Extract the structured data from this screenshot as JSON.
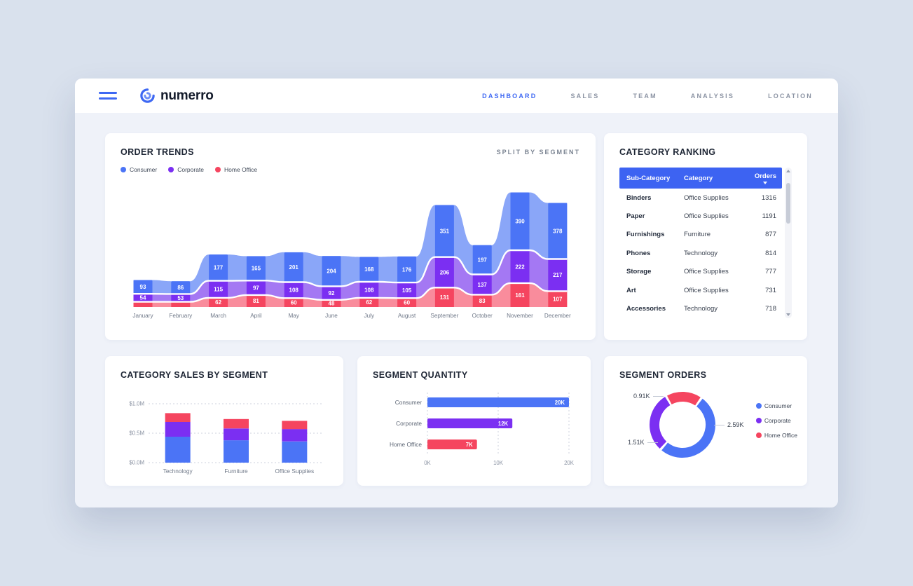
{
  "brand": {
    "name": "numerro"
  },
  "nav": {
    "items": [
      {
        "label": "DASHBOARD",
        "active": true
      },
      {
        "label": "SALES",
        "active": false
      },
      {
        "label": "TEAM",
        "active": false
      },
      {
        "label": "ANALYSIS",
        "active": false
      },
      {
        "label": "LOCATION",
        "active": false
      }
    ]
  },
  "colors": {
    "accent_blue": "#3e68f3",
    "consumer": "#4B74F6",
    "corporate": "#7B2FF2",
    "home_office": "#F5455F",
    "table_header": "#3d63f2"
  },
  "order_trends": {
    "subtitle": "SPLIT BY SEGMENT"
  },
  "category_ranking": {
    "title": "CATEGORY RANKING",
    "columns": [
      "Sub-Category",
      "Category",
      "Orders"
    ],
    "rows": [
      [
        "Binders",
        "Office Supplies",
        "1316"
      ],
      [
        "Paper",
        "Office Supplies",
        "1191"
      ],
      [
        "Furnishings",
        "Furniture",
        "877"
      ],
      [
        "Phones",
        "Technology",
        "814"
      ],
      [
        "Storage",
        "Office Supplies",
        "777"
      ],
      [
        "Art",
        "Office Supplies",
        "731"
      ],
      [
        "Accessories",
        "Technology",
        "718"
      ]
    ]
  },
  "chart_data": [
    {
      "id": "order_trends",
      "type": "area",
      "title": "ORDER TRENDS",
      "stacked": true,
      "categories": [
        "January",
        "February",
        "March",
        "April",
        "May",
        "June",
        "July",
        "August",
        "September",
        "October",
        "November",
        "December"
      ],
      "series": [
        {
          "name": "Consumer",
          "color": "#4B74F6",
          "light": "#8AA6F8",
          "values": [
            93,
            86,
            177,
            165,
            201,
            204,
            168,
            176,
            351,
            197,
            390,
            378
          ]
        },
        {
          "name": "Corporate",
          "color": "#7B2FF2",
          "light": "#A478F3",
          "values": [
            54,
            53,
            115,
            97,
            108,
            92,
            108,
            105,
            206,
            137,
            222,
            217
          ]
        },
        {
          "name": "Home Office",
          "color": "#F5455F",
          "light": "#F98C9C",
          "values": [
            null,
            null,
            62,
            81,
            60,
            48,
            62,
            60,
            131,
            83,
            161,
            107
          ]
        }
      ]
    },
    {
      "id": "category_sales",
      "type": "bar",
      "title": "CATEGORY SALES BY SEGMENT",
      "stacked": true,
      "categories": [
        "Technology",
        "Furniture",
        "Office Supplies"
      ],
      "series": [
        {
          "name": "Consumer",
          "color": "#4B74F6",
          "values": [
            0.44,
            0.38,
            0.36
          ]
        },
        {
          "name": "Corporate",
          "color": "#7B2FF2",
          "values": [
            0.25,
            0.2,
            0.21
          ]
        },
        {
          "name": "Home Office",
          "color": "#F5455F",
          "values": [
            0.15,
            0.16,
            0.14
          ]
        }
      ],
      "y_ticks": [
        "$0.0M",
        "$0.5M",
        "$1.0M"
      ],
      "y_tick_values": [
        0,
        0.5,
        1.0
      ],
      "ylim": [
        0,
        1.0
      ]
    },
    {
      "id": "segment_quantity",
      "type": "bar-horizontal",
      "title": "SEGMENT QUANTITY",
      "categories": [
        "Consumer",
        "Corporate",
        "Home Office"
      ],
      "values": [
        20,
        12,
        7
      ],
      "value_labels": [
        "20K",
        "12K",
        "7K"
      ],
      "colors": [
        "#4B74F6",
        "#7B2FF2",
        "#F5455F"
      ],
      "x_ticks": [
        "0K",
        "10K",
        "20K"
      ],
      "x_tick_values": [
        0,
        10,
        20
      ],
      "xlim": [
        0,
        20
      ]
    },
    {
      "id": "segment_orders",
      "type": "pie",
      "title": "SEGMENT ORDERS",
      "slices": [
        {
          "name": "Consumer",
          "color": "#4B74F6",
          "value": 2.59,
          "label": "2.59K"
        },
        {
          "name": "Corporate",
          "color": "#7B2FF2",
          "value": 1.51,
          "label": "1.51K"
        },
        {
          "name": "Home Office",
          "color": "#F5455F",
          "value": 0.91,
          "label": "0.91K"
        }
      ]
    }
  ]
}
